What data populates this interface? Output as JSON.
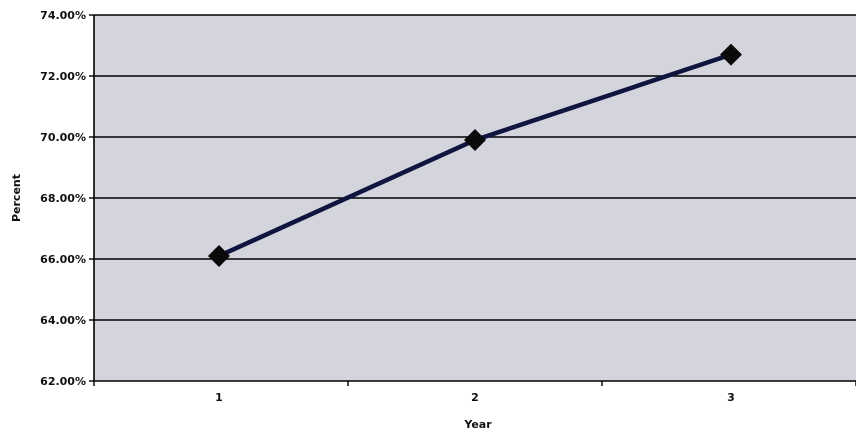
{
  "chart_data": {
    "type": "line",
    "title": "",
    "xlabel": "Year",
    "ylabel": "Percent",
    "categories": [
      "1",
      "2",
      "3"
    ],
    "series": [
      {
        "values": [
          66.1,
          69.9,
          72.7
        ]
      }
    ],
    "ylim": [
      62,
      74
    ],
    "yticks": [
      "62.00%",
      "64.00%",
      "66.00%",
      "68.00%",
      "70.00%",
      "72.00%",
      "74.00%"
    ],
    "ytick_values": [
      62,
      64,
      66,
      68,
      70,
      72,
      74
    ],
    "grid": true,
    "legend": "none",
    "marker": "diamond",
    "colors": {
      "plot_background": "#d4d4dc",
      "line": "#101540",
      "marker": "#0a0a0a",
      "gridline": "#000000"
    }
  }
}
